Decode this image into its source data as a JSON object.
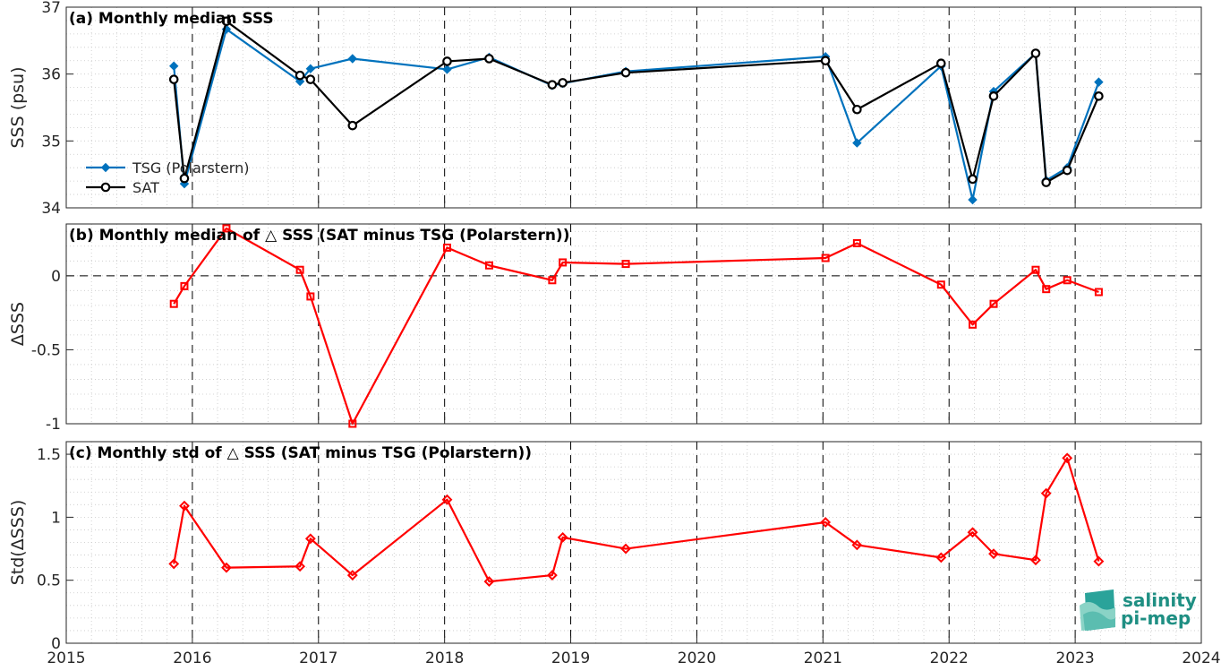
{
  "colors": {
    "tsg": "#0072bd",
    "sat": "#000000",
    "delta": "#ff0000",
    "grid": "#c8c8c8",
    "logo": "#1f8f83"
  },
  "logo": {
    "line1": "salinity",
    "line2": "pi-mep"
  },
  "chart_data": [
    {
      "type": "line",
      "title": "(a) Monthly median SSS",
      "xlabel": "",
      "ylabel": "SSS (psu)",
      "xlim": [
        2015,
        2024
      ],
      "ylim": [
        34,
        37
      ],
      "yticks": [
        34,
        35,
        36,
        37
      ],
      "grid": true,
      "legend_placement": "bottom-left",
      "series": [
        {
          "name": "TSG (Polarstern)",
          "marker": "diamond",
          "color": "#0072bd",
          "x": [
            "2015-11",
            "2015-12",
            "2016-04",
            "2016-11",
            "2016-12",
            "2017-04",
            "2018-01",
            "2018-05",
            "2018-11",
            "2018-12",
            "2019-06",
            "2021-01",
            "2021-04",
            "2021-12",
            "2022-03",
            "2022-05",
            "2022-09",
            "2022-10",
            "2022-12",
            "2023-03"
          ],
          "values": [
            36.12,
            34.36,
            36.67,
            35.89,
            36.08,
            36.23,
            36.07,
            36.25,
            35.83,
            35.86,
            36.04,
            36.26,
            34.97,
            36.12,
            34.12,
            35.74,
            36.31,
            34.41,
            34.6,
            35.88
          ]
        },
        {
          "name": "SAT",
          "marker": "circle",
          "color": "#000000",
          "x": [
            "2015-11",
            "2015-12",
            "2016-04",
            "2016-11",
            "2016-12",
            "2017-04",
            "2018-01",
            "2018-05",
            "2018-11",
            "2018-12",
            "2019-06",
            "2021-01",
            "2021-04",
            "2021-12",
            "2022-03",
            "2022-05",
            "2022-09",
            "2022-10",
            "2022-12",
            "2023-03"
          ],
          "values": [
            35.92,
            34.44,
            36.79,
            35.98,
            35.92,
            35.23,
            36.19,
            36.23,
            35.84,
            35.87,
            36.02,
            36.2,
            35.47,
            36.16,
            34.43,
            35.67,
            36.31,
            34.38,
            34.56,
            35.67
          ]
        }
      ]
    },
    {
      "type": "line",
      "title": "(b) Monthly median of △ SSS (SAT minus TSG (Polarstern))",
      "xlabel": "",
      "ylabel": "ΔSSS",
      "xlim": [
        2015,
        2024
      ],
      "ylim": [
        -1,
        0.35
      ],
      "yticks": [
        -1,
        -0.5,
        0
      ],
      "ytick_labels": [
        "-1",
        "-0.5",
        "0"
      ],
      "grid": true,
      "zero_line": true,
      "series": [
        {
          "marker": "square",
          "color": "#ff0000",
          "x": [
            "2015-11",
            "2015-12",
            "2016-04",
            "2016-11",
            "2016-12",
            "2017-04",
            "2018-01",
            "2018-05",
            "2018-11",
            "2018-12",
            "2019-06",
            "2021-01",
            "2021-04",
            "2021-12",
            "2022-03",
            "2022-05",
            "2022-09",
            "2022-10",
            "2022-12",
            "2023-03"
          ],
          "values": [
            -0.19,
            -0.07,
            0.32,
            0.04,
            -0.14,
            -1.0,
            0.19,
            0.07,
            -0.03,
            0.09,
            0.08,
            0.12,
            0.22,
            -0.06,
            -0.33,
            -0.19,
            0.04,
            -0.09,
            -0.03,
            -0.11
          ]
        }
      ]
    },
    {
      "type": "line",
      "title": "(c) Monthly std of △ SSS (SAT minus TSG (Polarstern))",
      "xlabel": "",
      "ylabel": "Std(ΔSSS)",
      "xlim": [
        2015,
        2024
      ],
      "ylim": [
        0,
        1.6
      ],
      "yticks": [
        0,
        0.5,
        1,
        1.5
      ],
      "ytick_labels": [
        "0",
        "0.5",
        "1",
        "1.5"
      ],
      "xticks": [
        2015,
        2016,
        2017,
        2018,
        2019,
        2020,
        2021,
        2022,
        2023,
        2024
      ],
      "xtick_labels": [
        "2015",
        "2016",
        "2017",
        "2018",
        "2019",
        "2020",
        "2021",
        "2022",
        "2023",
        "2024"
      ],
      "grid": true,
      "series": [
        {
          "marker": "diamond",
          "color": "#ff0000",
          "x": [
            "2015-11",
            "2015-12",
            "2016-04",
            "2016-11",
            "2016-12",
            "2017-04",
            "2018-01",
            "2018-05",
            "2018-11",
            "2018-12",
            "2019-06",
            "2021-01",
            "2021-04",
            "2021-12",
            "2022-03",
            "2022-05",
            "2022-09",
            "2022-10",
            "2022-12",
            "2023-03"
          ],
          "values": [
            0.63,
            1.09,
            0.6,
            0.61,
            0.83,
            0.54,
            1.14,
            0.49,
            0.54,
            0.84,
            0.75,
            0.96,
            0.78,
            0.68,
            0.88,
            0.71,
            0.66,
            1.19,
            1.47,
            0.65
          ]
        }
      ]
    }
  ]
}
